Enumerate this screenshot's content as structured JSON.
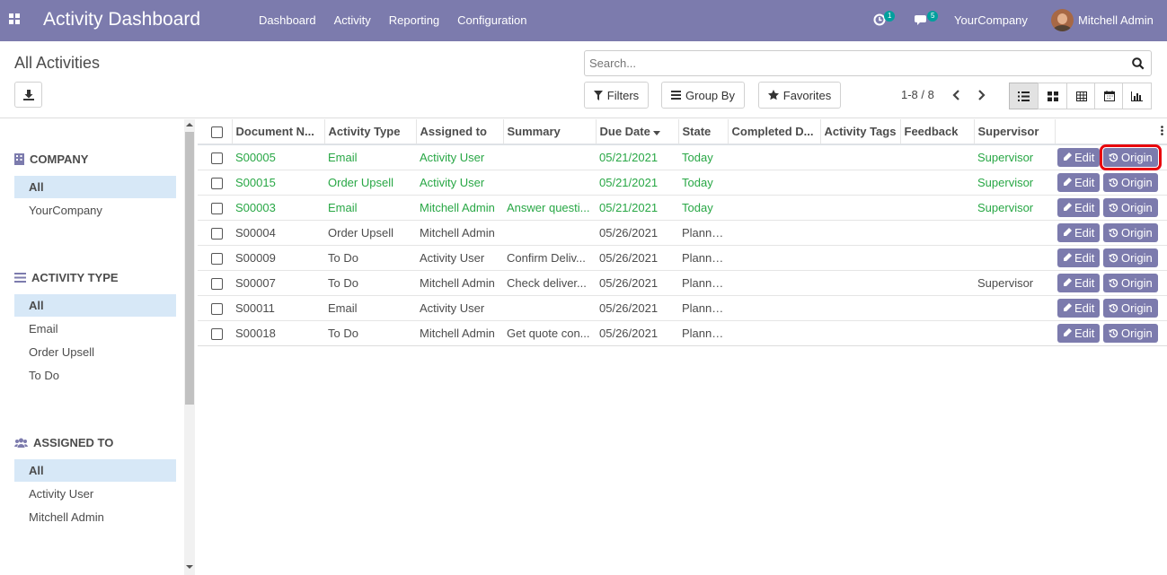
{
  "navbar": {
    "app_title": "Activity Dashboard",
    "menu": [
      "Dashboard",
      "Activity",
      "Reporting",
      "Configuration"
    ],
    "activity_count": "1",
    "message_count": "5",
    "company": "YourCompany",
    "user": "Mitchell Admin"
  },
  "control_panel": {
    "breadcrumb": "All Activities",
    "search_placeholder": "Search...",
    "filters_label": "Filters",
    "groupby_label": "Group By",
    "favorites_label": "Favorites",
    "pager": "1-8 / 8"
  },
  "sidebar": {
    "sections": [
      {
        "title": "COMPANY",
        "icon": "building-icon",
        "items": [
          "All",
          "YourCompany"
        ]
      },
      {
        "title": "ACTIVITY TYPE",
        "icon": "list-icon",
        "items": [
          "All",
          "Email",
          "Order Upsell",
          "To Do"
        ]
      },
      {
        "title": "ASSIGNED TO",
        "icon": "users-icon",
        "items": [
          "All",
          "Activity User",
          "Mitchell Admin"
        ]
      }
    ]
  },
  "table": {
    "columns": [
      "Document N...",
      "Activity Type",
      "Assigned to",
      "Summary",
      "Due Date",
      "State",
      "Completed D...",
      "Activity Tags",
      "Feedback",
      "Supervisor"
    ],
    "edit_label": "Edit",
    "origin_label": "Origin",
    "rows": [
      {
        "doc": "S00005",
        "type": "Email",
        "assigned": "Activity User",
        "summary": "",
        "due": "05/21/2021",
        "state": "Today",
        "supervisor": "Supervisor",
        "status_color": "#28a745"
      },
      {
        "doc": "S00015",
        "type": "Order Upsell",
        "assigned": "Activity User",
        "summary": "",
        "due": "05/21/2021",
        "state": "Today",
        "supervisor": "Supervisor",
        "status_color": "#28a745"
      },
      {
        "doc": "S00003",
        "type": "Email",
        "assigned": "Mitchell Admin",
        "summary": "Answer questi...",
        "due": "05/21/2021",
        "state": "Today",
        "supervisor": "Supervisor",
        "status_color": "#28a745"
      },
      {
        "doc": "S00004",
        "type": "Order Upsell",
        "assigned": "Mitchell Admin",
        "summary": "",
        "due": "05/26/2021",
        "state": "Planned",
        "supervisor": "",
        "status_color": "#4c4c4c"
      },
      {
        "doc": "S00009",
        "type": "To Do",
        "assigned": "Activity User",
        "summary": "Confirm Deliv...",
        "due": "05/26/2021",
        "state": "Planned",
        "supervisor": "",
        "status_color": "#4c4c4c"
      },
      {
        "doc": "S00007",
        "type": "To Do",
        "assigned": "Mitchell Admin",
        "summary": "Check deliver...",
        "due": "05/26/2021",
        "state": "Planned",
        "supervisor": "Supervisor",
        "status_color": "#4c4c4c"
      },
      {
        "doc": "S00011",
        "type": "Email",
        "assigned": "Activity User",
        "summary": "",
        "due": "05/26/2021",
        "state": "Planned",
        "supervisor": "",
        "status_color": "#4c4c4c"
      },
      {
        "doc": "S00018",
        "type": "To Do",
        "assigned": "Mitchell Admin",
        "summary": "Get quote con...",
        "due": "05/26/2021",
        "state": "Planned",
        "supervisor": "",
        "status_color": "#4c4c4c"
      }
    ]
  },
  "colors": {
    "navbar": "#7c7bad",
    "accent": "#7c7bad",
    "today": "#28a745",
    "highlight": "#e8000b"
  }
}
